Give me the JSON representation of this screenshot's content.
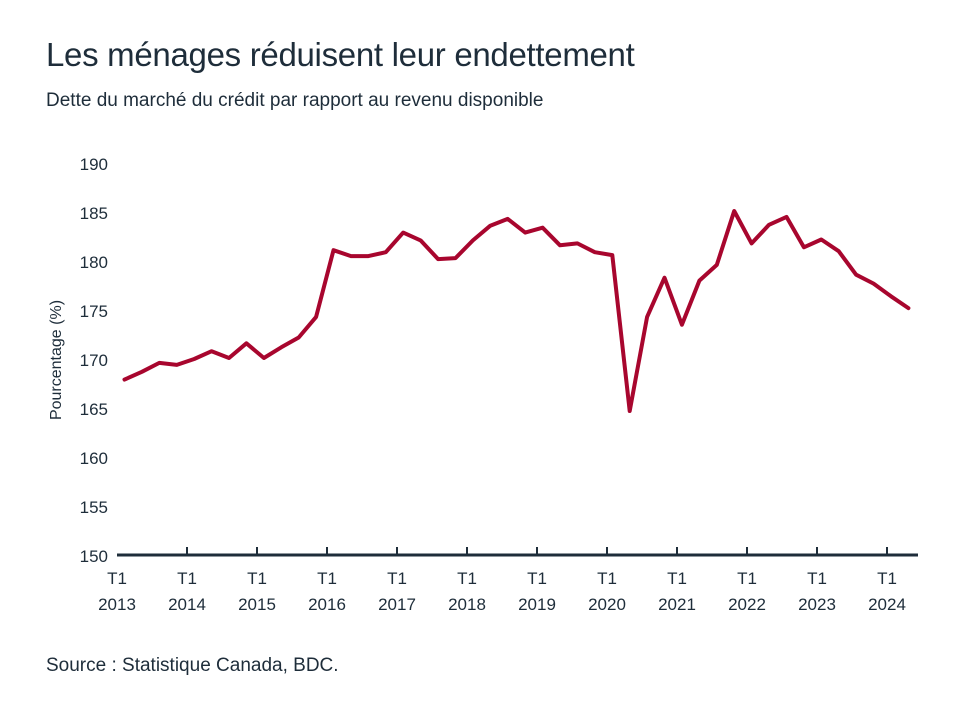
{
  "title": "Les ménages réduisent leur endettement",
  "subtitle": "Dette du marché du crédit par rapport au revenu disponible",
  "source": "Source : Statistique Canada, BDC.",
  "colors": {
    "line": "#a8062e",
    "text": "#1e2d3a",
    "axis": "#1e2d3a"
  },
  "chart_data": {
    "type": "line",
    "title": "Les ménages réduisent leur endettement",
    "subtitle": "Dette du marché du crédit par rapport au revenu disponible",
    "xlabel": "",
    "ylabel": "Pourcentage (%)",
    "ylim": [
      150,
      190
    ],
    "yticks": [
      "150",
      "155",
      "160",
      "165",
      "170",
      "175",
      "180",
      "185",
      "190"
    ],
    "xticks": [
      {
        "quarter": "T1",
        "year": "2013"
      },
      {
        "quarter": "T1",
        "year": "2014"
      },
      {
        "quarter": "T1",
        "year": "2015"
      },
      {
        "quarter": "T1",
        "year": "2016"
      },
      {
        "quarter": "T1",
        "year": "2017"
      },
      {
        "quarter": "T1",
        "year": "2018"
      },
      {
        "quarter": "T1",
        "year": "2019"
      },
      {
        "quarter": "T1",
        "year": "2020"
      },
      {
        "quarter": "T1",
        "year": "2021"
      },
      {
        "quarter": "T1",
        "year": "2022"
      },
      {
        "quarter": "T1",
        "year": "2023"
      },
      {
        "quarter": "T1",
        "year": "2024"
      }
    ],
    "grid": false,
    "x_start": "2013 T1",
    "x_end": "2024 T2",
    "series": [
      {
        "values": [
          168.0,
          168.8,
          169.7,
          169.5,
          170.1,
          170.9,
          170.2,
          171.7,
          170.2,
          171.3,
          172.3,
          174.4,
          181.2,
          180.6,
          180.6,
          181.0,
          183.0,
          182.2,
          180.3,
          180.4,
          182.2,
          183.7,
          184.4,
          183.0,
          183.5,
          181.7,
          181.9,
          181.0,
          180.7,
          164.8,
          174.4,
          178.4,
          173.6,
          178.1,
          179.7,
          185.2,
          181.9,
          183.8,
          184.6,
          181.5,
          182.3,
          181.1,
          178.7,
          177.8,
          176.5,
          175.3
        ]
      }
    ]
  }
}
